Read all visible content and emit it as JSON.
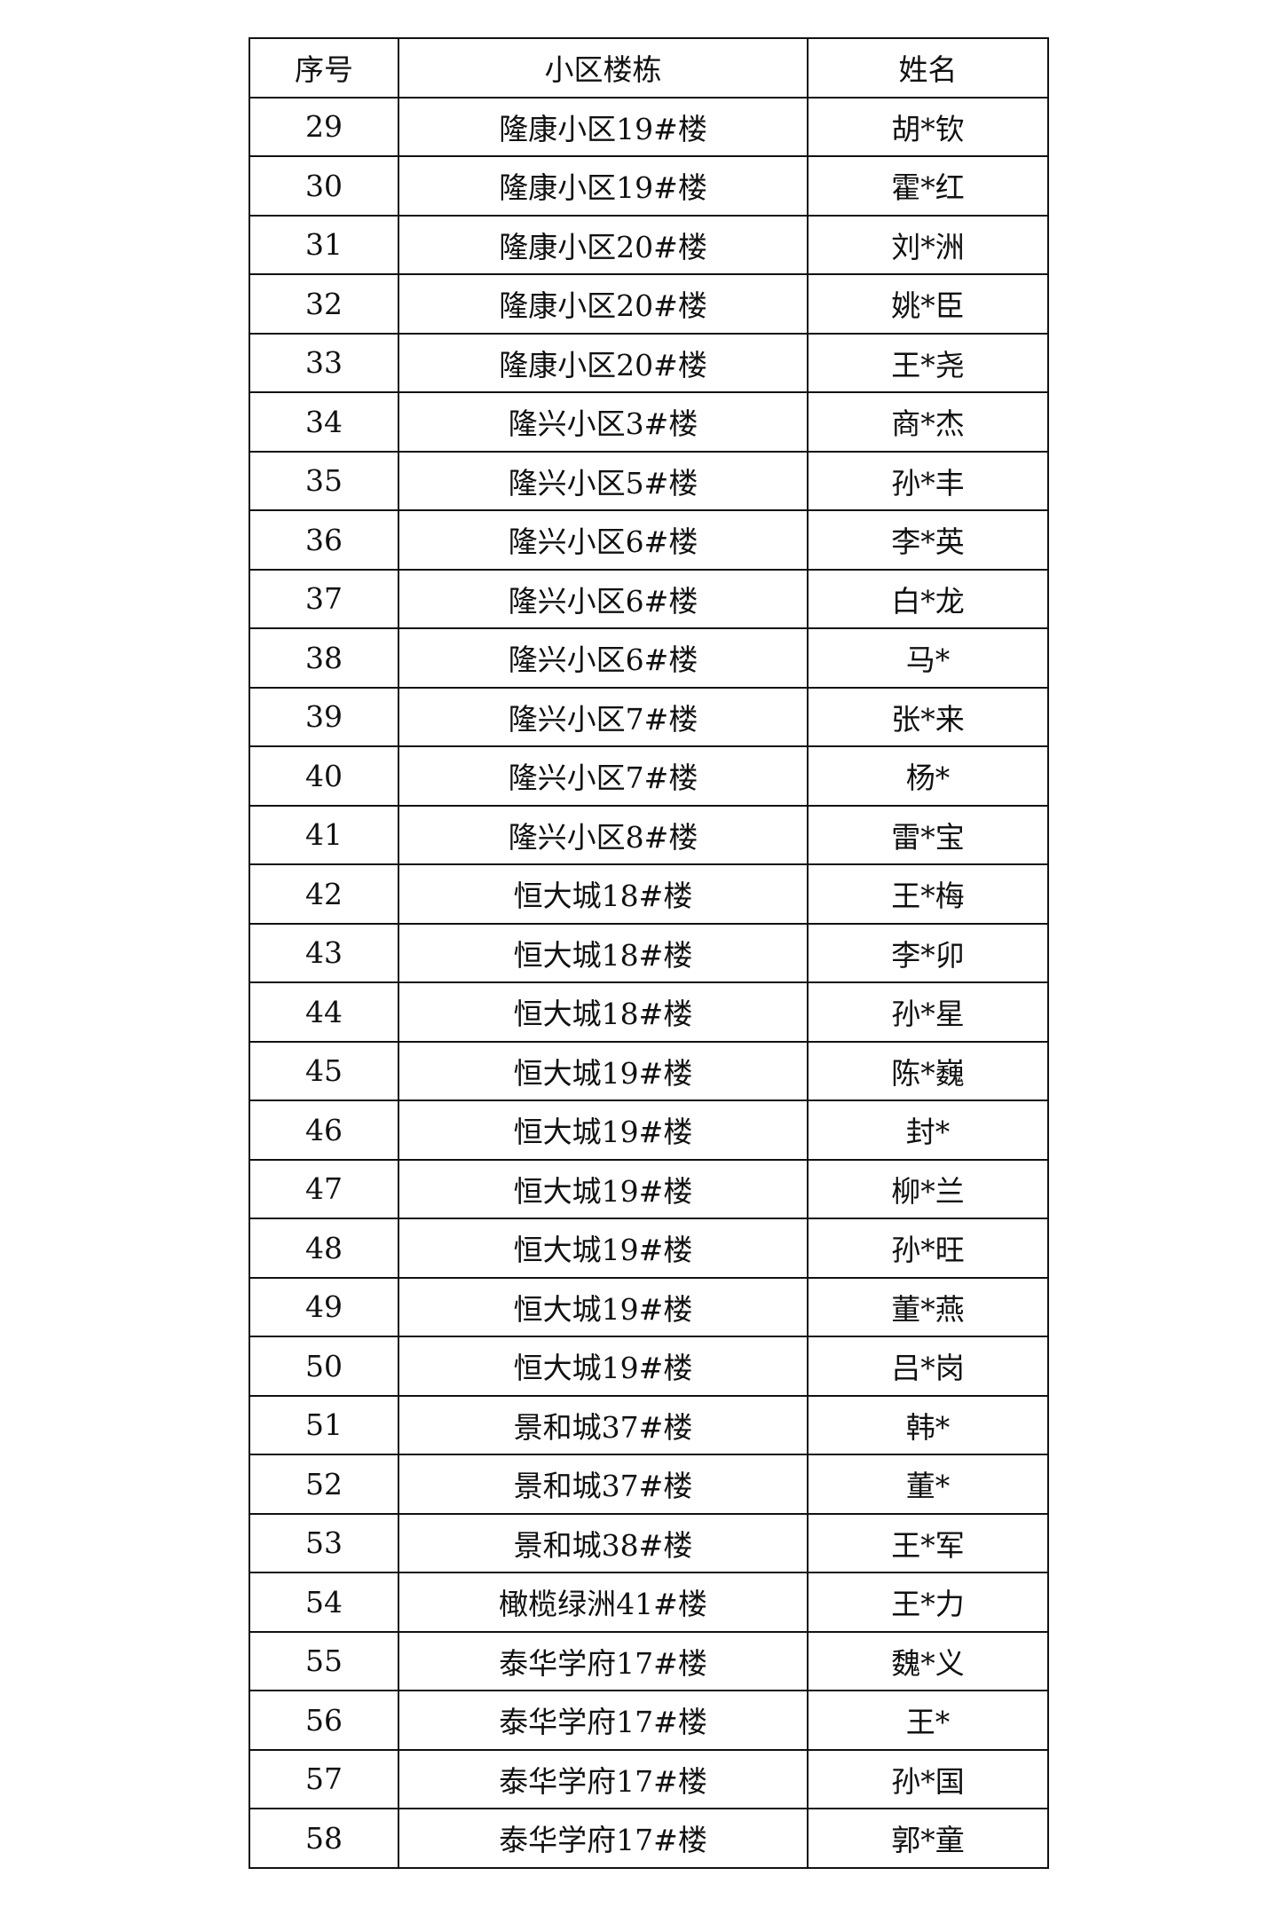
{
  "header": {
    "index": "序号",
    "building": "小区楼栋",
    "name": "姓名"
  },
  "rows": [
    {
      "index": "29",
      "building": "隆康小区19#楼",
      "name": "胡*钦"
    },
    {
      "index": "30",
      "building": "隆康小区19#楼",
      "name": "霍*红"
    },
    {
      "index": "31",
      "building": "隆康小区20#楼",
      "name": "刘*洲"
    },
    {
      "index": "32",
      "building": "隆康小区20#楼",
      "name": "姚*臣"
    },
    {
      "index": "33",
      "building": "隆康小区20#楼",
      "name": "王*尧"
    },
    {
      "index": "34",
      "building": "隆兴小区3#楼",
      "name": "商*杰"
    },
    {
      "index": "35",
      "building": "隆兴小区5#楼",
      "name": "孙*丰"
    },
    {
      "index": "36",
      "building": "隆兴小区6#楼",
      "name": "李*英"
    },
    {
      "index": "37",
      "building": "隆兴小区6#楼",
      "name": "白*龙"
    },
    {
      "index": "38",
      "building": "隆兴小区6#楼",
      "name": "马*"
    },
    {
      "index": "39",
      "building": "隆兴小区7#楼",
      "name": "张*来"
    },
    {
      "index": "40",
      "building": "隆兴小区7#楼",
      "name": "杨*"
    },
    {
      "index": "41",
      "building": "隆兴小区8#楼",
      "name": "雷*宝"
    },
    {
      "index": "42",
      "building": "恒大城18#楼",
      "name": "王*梅"
    },
    {
      "index": "43",
      "building": "恒大城18#楼",
      "name": "李*卯"
    },
    {
      "index": "44",
      "building": "恒大城18#楼",
      "name": "孙*星"
    },
    {
      "index": "45",
      "building": "恒大城19#楼",
      "name": "陈*巍"
    },
    {
      "index": "46",
      "building": "恒大城19#楼",
      "name": "封*"
    },
    {
      "index": "47",
      "building": "恒大城19#楼",
      "name": "柳*兰"
    },
    {
      "index": "48",
      "building": "恒大城19#楼",
      "name": "孙*旺"
    },
    {
      "index": "49",
      "building": "恒大城19#楼",
      "name": "董*燕"
    },
    {
      "index": "50",
      "building": "恒大城19#楼",
      "name": "吕*岗"
    },
    {
      "index": "51",
      "building": "景和城37#楼",
      "name": "韩*"
    },
    {
      "index": "52",
      "building": "景和城37#楼",
      "name": "董*"
    },
    {
      "index": "53",
      "building": "景和城38#楼",
      "name": "王*军"
    },
    {
      "index": "54",
      "building": "橄榄绿洲41#楼",
      "name": "王*力"
    },
    {
      "index": "55",
      "building": "泰华学府17#楼",
      "name": "魏*义"
    },
    {
      "index": "56",
      "building": "泰华学府17#楼",
      "name": "王*"
    },
    {
      "index": "57",
      "building": "泰华学府17#楼",
      "name": "孙*国"
    },
    {
      "index": "58",
      "building": "泰华学府17#楼",
      "name": "郭*童"
    }
  ]
}
